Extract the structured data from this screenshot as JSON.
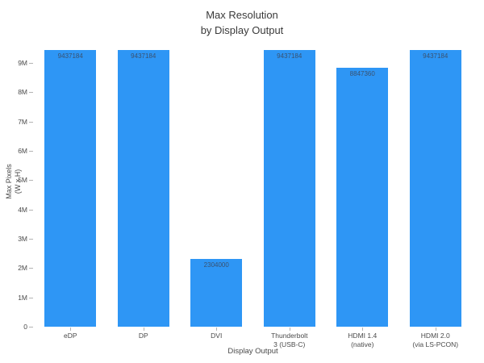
{
  "figure": {
    "title_line1": "Max Resolution",
    "title_line2": "by Display Output",
    "x_axis_title": "Display Output",
    "y_axis_title_line1": "Max Pixels",
    "y_axis_title_line2": "(W x H)"
  },
  "chart_data": {
    "type": "bar",
    "title": "Max Resolution by Display Output",
    "xlabel": "Display Output",
    "ylabel": "Max Pixels (W x H)",
    "categories": [
      "eDP",
      "DP",
      "DVI",
      "Thunderbolt\n3 (USB-C)",
      "HDMI 1.4\n(native)",
      "HDMI 2.0\n(via LS-PCON)"
    ],
    "values": [
      9437184,
      9437184,
      2304000,
      9437184,
      8847360,
      9437184
    ],
    "bar_value_labels": [
      "9437184",
      "9437184",
      "2304000",
      "9437184",
      "8847360",
      "9437184"
    ],
    "ylim": [
      0,
      9910000
    ],
    "ytick_values": [
      0,
      1000000,
      2000000,
      3000000,
      4000000,
      5000000,
      6000000,
      7000000,
      8000000,
      9000000
    ],
    "ytick_labels": [
      "0",
      "1M",
      "2M",
      "3M",
      "4M",
      "5M",
      "6M",
      "7M",
      "8M",
      "9M"
    ],
    "grid": false,
    "legend": "none",
    "bar_color": "#2E96F5",
    "bar_label_color": "#3A5270",
    "axis_text_color": "#4a4a4a",
    "title_color": "#3a3a3a"
  }
}
